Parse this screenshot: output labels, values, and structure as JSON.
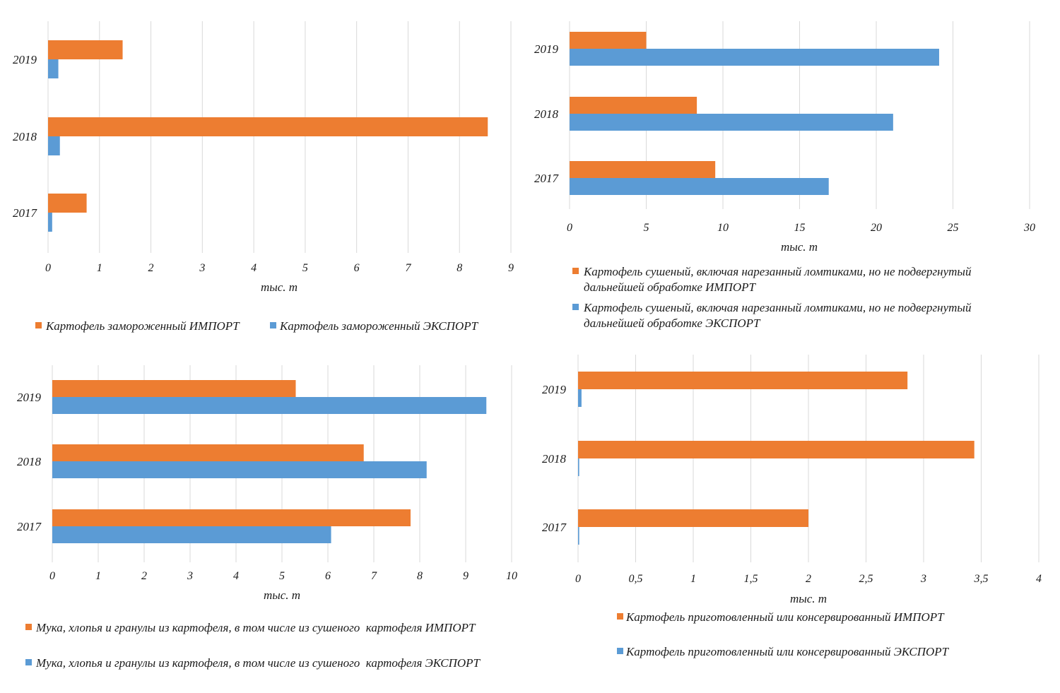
{
  "colors": {
    "import": "#ED7D31",
    "export": "#5B9BD5",
    "grid": "#D9D9D9"
  },
  "chart_data": [
    {
      "type": "bar",
      "orientation": "horizontal",
      "categories": [
        "2017",
        "2018",
        "2019"
      ],
      "series": [
        {
          "name": "Картофель замороженный ИМПОРТ",
          "values": [
            0.75,
            8.55,
            1.45
          ]
        },
        {
          "name": "Картофель замороженный ЭКСПОРТ",
          "values": [
            0.08,
            0.23,
            0.2
          ]
        }
      ],
      "xlim": [
        0,
        9
      ],
      "ticks": [
        "0",
        "1",
        "2",
        "3",
        "4",
        "5",
        "6",
        "7",
        "8",
        "9"
      ],
      "xlabel": "тыс. т",
      "grid": true,
      "legend": "bottom"
    },
    {
      "type": "bar",
      "orientation": "horizontal",
      "categories": [
        "2017",
        "2018",
        "2019"
      ],
      "series": [
        {
          "name": "Картофель сушеный, включая нарезанный ломтиками, но не подвергнутый дальнейшей обработке ИМПОРТ",
          "values": [
            9.5,
            8.3,
            5.0
          ]
        },
        {
          "name": "Картофель сушеный, включая нарезанный ломтиками, но не подвергнутый дальнейшей обработке ЭКСПОРТ",
          "values": [
            16.9,
            21.1,
            24.1
          ]
        }
      ],
      "xlim": [
        0,
        30
      ],
      "ticks": [
        "0",
        "5",
        "10",
        "15",
        "20",
        "25",
        "30"
      ],
      "xlabel": "тыс. т",
      "grid": true,
      "legend": "bottom"
    },
    {
      "type": "bar",
      "orientation": "horizontal",
      "categories": [
        "2017",
        "2018",
        "2019"
      ],
      "series": [
        {
          "name": "Мука, хлопья и гранулы из картофеля, в том числе из сушеного  картофеля ИМПОРТ",
          "values": [
            7.8,
            6.78,
            5.3
          ]
        },
        {
          "name": "Мука, хлопья и гранулы из картофеля, в том числе из сушеного  картофеля ЭКСПОРТ",
          "values": [
            6.07,
            8.15,
            9.45
          ]
        }
      ],
      "xlim": [
        0,
        10
      ],
      "ticks": [
        "0",
        "1",
        "2",
        "3",
        "4",
        "5",
        "6",
        "7",
        "8",
        "9",
        "10"
      ],
      "xlabel": "тыс. т",
      "grid": true,
      "legend": "bottom"
    },
    {
      "type": "bar",
      "orientation": "horizontal",
      "categories": [
        "2017",
        "2018",
        "2019"
      ],
      "series": [
        {
          "name": "Картофель приготовленный или консервированный ИМПОРТ",
          "values": [
            2.0,
            3.44,
            2.86
          ]
        },
        {
          "name": "Картофель приготовленный или консервированный ЭКСПОРТ",
          "values": [
            0.01,
            0.01,
            0.03
          ]
        }
      ],
      "xlim": [
        0,
        4
      ],
      "ticks": [
        "0",
        "0,5",
        "1",
        "1,5",
        "2",
        "2,5",
        "3",
        "3,5",
        "4"
      ],
      "xlabel": "тыс. т",
      "grid": true,
      "legend": "bottom"
    }
  ]
}
